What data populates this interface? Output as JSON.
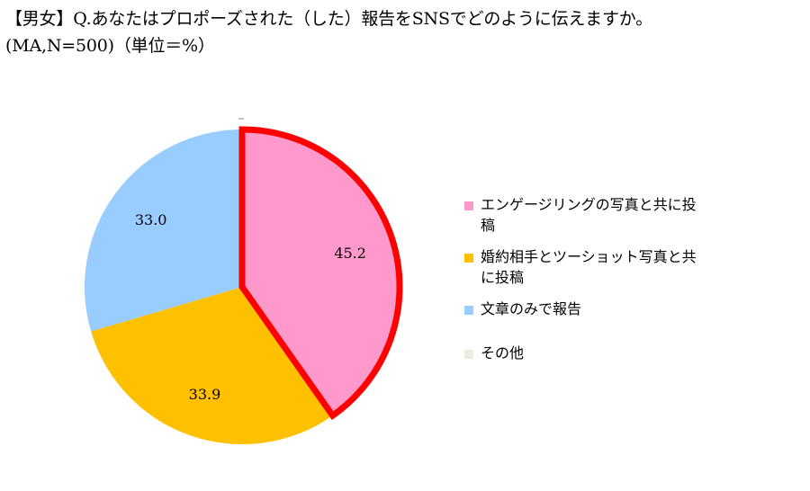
{
  "title": {
    "line1": "【男女】Q.あなたはプロポーズされた（した）報告をSNSでどのように伝えますか。",
    "line2": "(MA,N=500)（単位＝%）"
  },
  "chart_data": {
    "type": "pie",
    "start_angle_deg": 0,
    "direction": "clockwise",
    "slices": [
      {
        "label": "エンゲージリングの写真と共に投稿",
        "value": 45.2,
        "color": "#FF99CC",
        "highlight": true,
        "highlight_color": "#FF0000",
        "data_label": "45.2"
      },
      {
        "label": "婚約相手とツーショット写真と共に投稿",
        "value": 33.9,
        "color": "#FFC000",
        "highlight": false,
        "data_label": "33.9"
      },
      {
        "label": "文章のみで報告",
        "value": 33.0,
        "color": "#99CCFF",
        "highlight": false,
        "data_label": "33.0"
      },
      {
        "label": "その他",
        "value": 0.2,
        "color": "#EEECE1",
        "highlight": false,
        "data_label": ""
      }
    ],
    "legend_position": "right"
  }
}
